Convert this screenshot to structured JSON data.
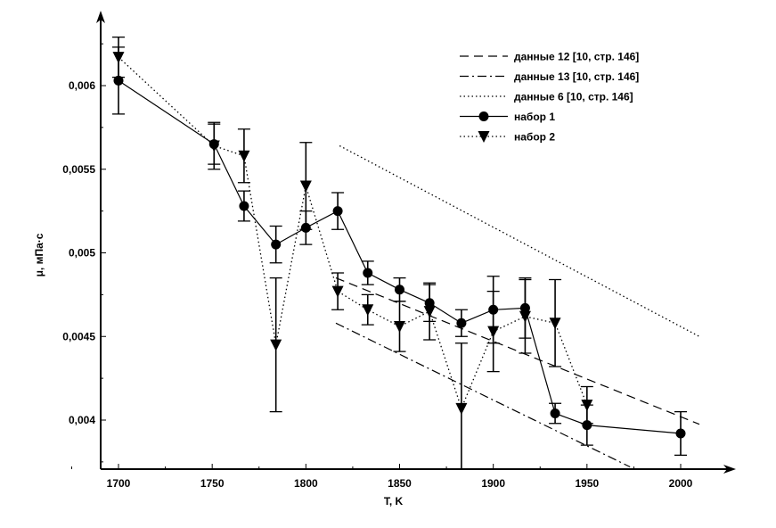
{
  "chart_data": {
    "type": "line",
    "title": "",
    "xlabel": "T, K",
    "ylabel": "μ, мПа·с",
    "xlim": [
      1690,
      2015
    ],
    "ylim": [
      0.00372,
      0.00635
    ],
    "x_ticks": [
      1700,
      1750,
      1800,
      1850,
      1900,
      1950,
      2000
    ],
    "x_tick_labels": [
      "1700",
      "1750",
      "1800",
      "1850",
      "1900",
      "1950",
      "2000"
    ],
    "y_ticks": [
      0.004,
      0.0045,
      0.005,
      0.0055,
      0.006
    ],
    "y_tick_labels": [
      "0,004",
      "0,0045",
      "0,005",
      "0,0055",
      "0,006"
    ],
    "legend_position": "top-right",
    "series": [
      {
        "name": "данные 12 [10, стр. 146]",
        "style": "dashed",
        "x": [
          1816,
          2010
        ],
        "y": [
          0.00485,
          0.003975
        ]
      },
      {
        "name": "данные 13 [10, стр. 146]",
        "style": "dashdot",
        "x": [
          1816,
          1973
        ],
        "y": [
          0.00458,
          0.00372
        ]
      },
      {
        "name": "данные 6 [10, стр. 146]",
        "style": "dotted",
        "x": [
          1818,
          2010
        ],
        "y": [
          0.00564,
          0.0045
        ]
      },
      {
        "name": "набор 1",
        "style": "solid",
        "marker": "circle",
        "x": [
          1700,
          1751,
          1767,
          1784,
          1800,
          1817,
          1833,
          1850,
          1866,
          1883,
          1900,
          1917,
          1933,
          1950,
          2000
        ],
        "y": [
          0.00603,
          0.00565,
          0.00528,
          0.00505,
          0.00515,
          0.00525,
          0.00488,
          0.00478,
          0.0047,
          0.00458,
          0.00466,
          0.00467,
          0.00404,
          0.00397,
          0.00392
        ],
        "err": [
          0.0002,
          0.00012,
          9e-05,
          0.00011,
          0.0001,
          0.00011,
          7e-05,
          7e-05,
          0.00011,
          8e-05,
          0.0002,
          0.00018,
          6e-05,
          0.00012,
          0.00013
        ]
      },
      {
        "name": "набор 2",
        "style": "dotted",
        "marker": "triangle-down",
        "x": [
          1700,
          1751,
          1767,
          1784,
          1800,
          1817,
          1833,
          1850,
          1866,
          1883,
          1900,
          1917,
          1933,
          1950
        ],
        "y": [
          0.00617,
          0.00564,
          0.00558,
          0.00445,
          0.0054,
          0.00477,
          0.00466,
          0.00456,
          0.00465,
          0.00407,
          0.00453,
          0.00462,
          0.00458,
          0.00409
        ],
        "err": [
          0.00012,
          0.00014,
          0.00016,
          0.0004,
          0.00026,
          0.00011,
          9e-05,
          0.00015,
          0.00017,
          0.00039,
          0.00024,
          0.00022,
          0.00026,
          0.00011
        ]
      }
    ]
  }
}
